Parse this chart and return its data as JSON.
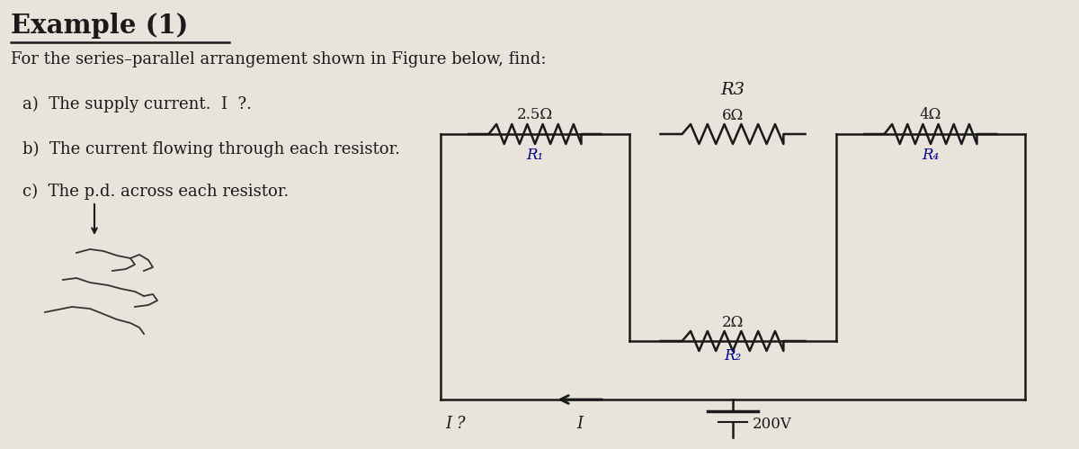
{
  "title": "Example (1)",
  "line1": "For the series–parallel arrangement shown in Figure below, find:",
  "item_a": "a)  The supply current.  I  ?.",
  "item_b": "b)  The current flowing through each resistor.",
  "item_c": "c)  The p.d. across each resistor.",
  "r1_label": "R₁",
  "r2_label": "R₂",
  "r3_label": "R3",
  "r4_label": "R₄",
  "r1_val": "2.5Ω",
  "r2_val": "2Ω",
  "r3_val": "6Ω",
  "r4_val": "4Ω",
  "voltage": "200V",
  "current_label": "I",
  "I_label": "I ?",
  "bg_color": "#e8e4dc",
  "text_color": "#1a1a1a",
  "circuit_color": "#1a1a1a",
  "label_color": "#00008B"
}
